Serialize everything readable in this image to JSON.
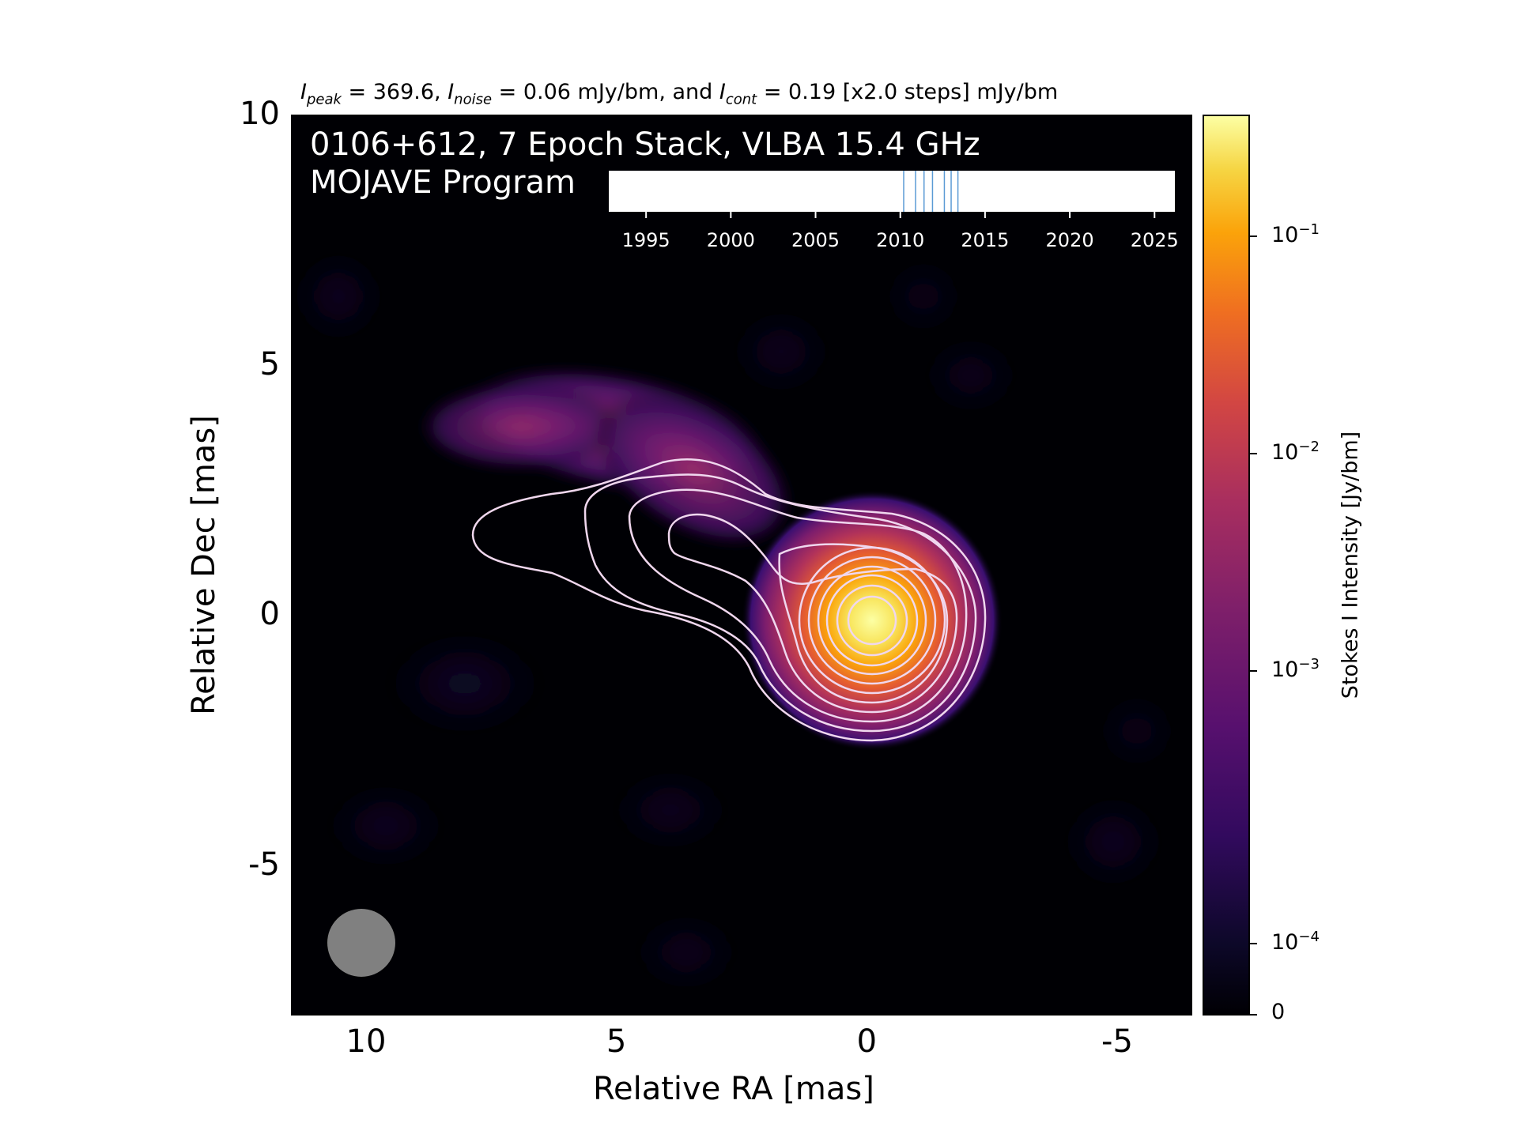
{
  "summary": {
    "peak_label": "peak",
    "peak_value": "369.6",
    "noise_label": "noise",
    "noise_value": "0.06 mJy/bm",
    "cont_label": "cont",
    "cont_value": "0.19 [x2.0 steps] mJy/bm",
    "joiner": "and"
  },
  "panel": {
    "line1": "0106+612, 7 Epoch Stack, VLBA 15.4 GHz",
    "line2": "MOJAVE Program"
  },
  "chart_data": [
    {
      "type": "heatmap",
      "title": "0106+612, 7 Epoch Stack, VLBA 15.4 GHz",
      "xlabel": "Relative RA [mas]",
      "ylabel": "Relative Dec [mas]",
      "xlim": [
        11.5,
        -6.5
      ],
      "ylim": [
        -8,
        10
      ],
      "x_ticks": [
        "10",
        "5",
        "0",
        "-5"
      ],
      "x_tick_values": [
        10,
        5,
        0,
        -5
      ],
      "y_ticks": [
        "10",
        "5",
        "0",
        "-5"
      ],
      "y_tick_values": [
        10,
        5,
        0,
        -5
      ],
      "colormap": "inferno",
      "peak_position": [
        0,
        0
      ],
      "beam": {
        "ra": 10.2,
        "dec": -6.5,
        "diameter_mas": 1.3,
        "color": "#808080"
      },
      "jet_direction": "north-east (toward positive RA)",
      "contour_color": "#f0d7ee",
      "contours_core_radii_mas": [
        1.0,
        1.5,
        1.85,
        2.1,
        2.3,
        2.45,
        2.6,
        2.75,
        2.9,
        3.05
      ]
    },
    {
      "type": "scatter",
      "name": "epoch-timeline",
      "x_ticks": [
        "1995",
        "2000",
        "2005",
        "2010",
        "2015",
        "2020",
        "2025"
      ],
      "x_tick_values": [
        1995,
        2000,
        2005,
        2010,
        2015,
        2020,
        2025
      ],
      "xlim": [
        1992.8,
        2026.2
      ],
      "epochs": [
        2010.2,
        2010.9,
        2011.4,
        2011.9,
        2012.6,
        2013.0,
        2013.4
      ],
      "epoch_color": "#5b9bd5"
    },
    {
      "type": "heatmap",
      "name": "colorbar",
      "label": "Stokes I Intensity [Jy/bm]",
      "scale": "log",
      "tick_labels": [
        {
          "base": "10",
          "exp": "−1",
          "value": 0.1
        },
        {
          "base": "10",
          "exp": "−2",
          "value": 0.01
        },
        {
          "base": "10",
          "exp": "−3",
          "value": 0.001
        },
        {
          "base": "10",
          "exp": "−4",
          "value": 0.0001
        },
        {
          "base": "0",
          "exp": "",
          "value": 0
        }
      ],
      "range": [
        0,
        0.3696
      ]
    }
  ]
}
